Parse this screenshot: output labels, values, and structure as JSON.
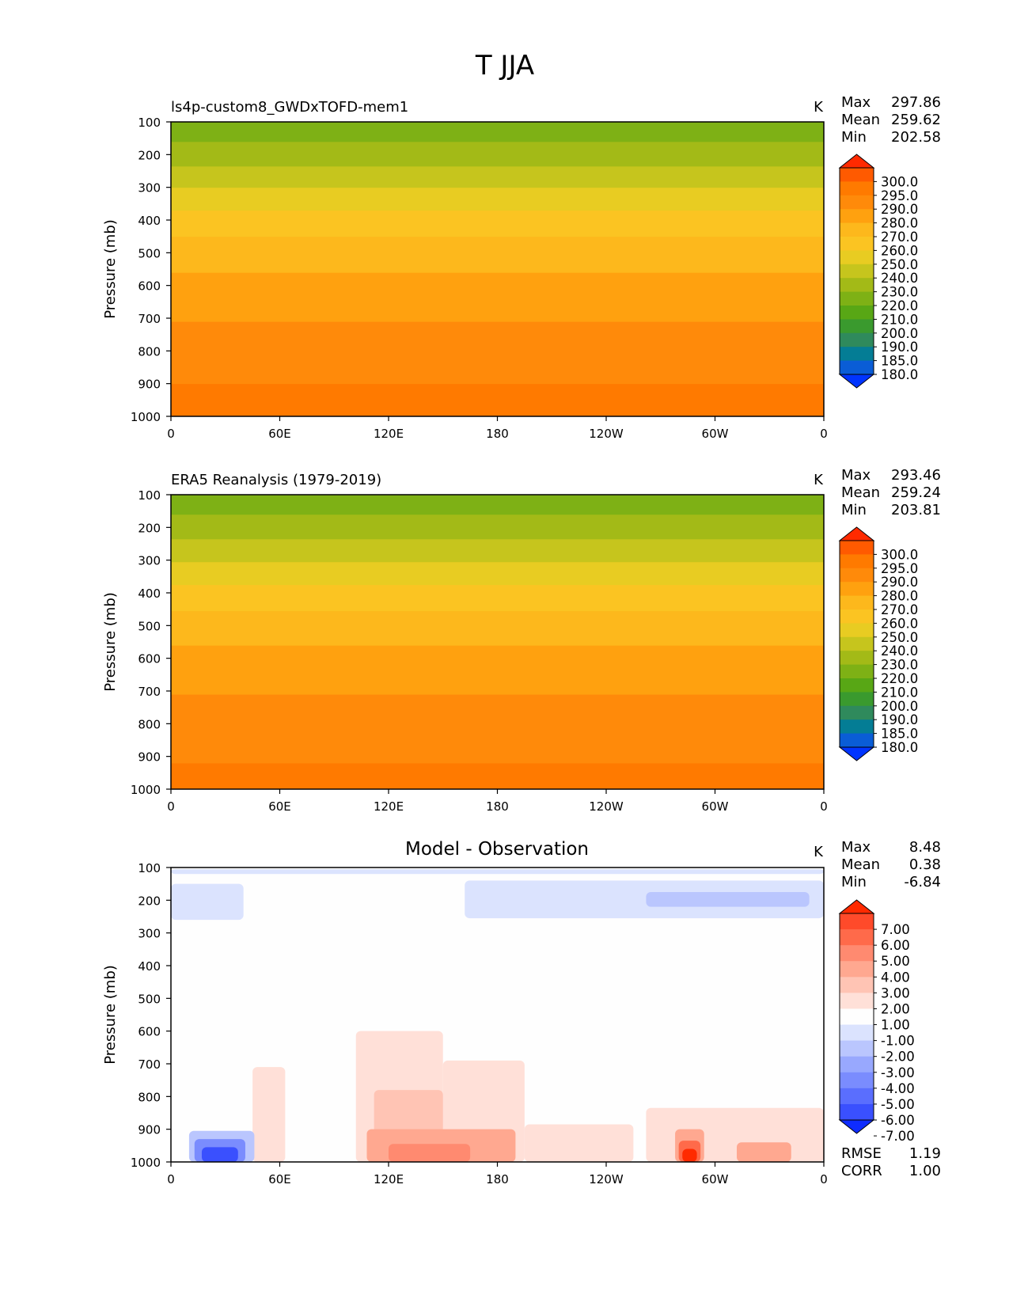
{
  "figure": {
    "title": "T JJA",
    "units": "K",
    "ylabel": "Pressure (mb)"
  },
  "x_ticks": [
    "0",
    "60E",
    "120E",
    "180",
    "120W",
    "60W",
    "0"
  ],
  "y_ticks": [
    "100",
    "200",
    "300",
    "400",
    "500",
    "600",
    "700",
    "800",
    "900",
    "1000"
  ],
  "chart_data": [
    {
      "type": "heatmap",
      "title": "ls4p-custom8_GWDxTOFD-mem1",
      "title_align": "left",
      "units": "K",
      "ylabel": "Pressure (mb)",
      "x_range": [
        0,
        360
      ],
      "y_range": [
        100,
        1000
      ],
      "stats": [
        {
          "label": "Max",
          "value": "297.86"
        },
        {
          "label": "Mean",
          "value": "259.62"
        },
        {
          "label": "Min",
          "value": "202.58"
        }
      ],
      "colorbar": {
        "labels": [
          "300.0",
          "295.0",
          "290.0",
          "280.0",
          "270.0",
          "260.0",
          "250.0",
          "240.0",
          "230.0",
          "220.0",
          "210.0",
          "200.0",
          "190.0",
          "185.0",
          "180.0"
        ],
        "colors": [
          "#ff2a00",
          "#ff5a00",
          "#ff7a00",
          "#ff8a0a",
          "#ffa10f",
          "#fdb81c",
          "#fbc422",
          "#e8cc22",
          "#c6c51d",
          "#a3ba17",
          "#7eb115",
          "#58a715",
          "#3a9a2e",
          "#2f8a5c",
          "#047d95",
          "#0a5dd6",
          "#0034ff"
        ],
        "over_color": "#ff2a00",
        "under_color": "#0034ff"
      },
      "bands": [
        {
          "level": 100,
          "value": 205
        },
        {
          "level": 160,
          "value": 215
        },
        {
          "level": 235,
          "value": 225
        },
        {
          "level": 300,
          "value": 235
        },
        {
          "level": 370,
          "value": 245
        },
        {
          "level": 450,
          "value": 255
        },
        {
          "level": 560,
          "value": 265
        },
        {
          "level": 710,
          "value": 275
        },
        {
          "level": 900,
          "value": 285
        },
        {
          "level": 990,
          "value": 292
        }
      ]
    },
    {
      "type": "heatmap",
      "title": "ERA5 Reanalysis (1979-2019)",
      "title_align": "left",
      "units": "K",
      "ylabel": "Pressure (mb)",
      "x_range": [
        0,
        360
      ],
      "y_range": [
        100,
        1000
      ],
      "stats": [
        {
          "label": "Max",
          "value": "293.46"
        },
        {
          "label": "Mean",
          "value": "259.24"
        },
        {
          "label": "Min",
          "value": "203.81"
        }
      ],
      "colorbar": {
        "labels": [
          "300.0",
          "295.0",
          "290.0",
          "280.0",
          "270.0",
          "260.0",
          "250.0",
          "240.0",
          "230.0",
          "220.0",
          "210.0",
          "200.0",
          "190.0",
          "185.0",
          "180.0"
        ],
        "colors": [
          "#ff2a00",
          "#ff5a00",
          "#ff7a00",
          "#ff8a0a",
          "#ffa10f",
          "#fdb81c",
          "#fbc422",
          "#e8cc22",
          "#c6c51d",
          "#a3ba17",
          "#7eb115",
          "#58a715",
          "#3a9a2e",
          "#2f8a5c",
          "#047d95",
          "#0a5dd6",
          "#0034ff"
        ],
        "over_color": "#ff2a00",
        "under_color": "#0034ff"
      },
      "bands": [
        {
          "level": 100,
          "value": 205
        },
        {
          "level": 160,
          "value": 215
        },
        {
          "level": 235,
          "value": 225
        },
        {
          "level": 305,
          "value": 235
        },
        {
          "level": 375,
          "value": 245
        },
        {
          "level": 455,
          "value": 255
        },
        {
          "level": 560,
          "value": 265
        },
        {
          "level": 710,
          "value": 275
        },
        {
          "level": 920,
          "value": 285
        },
        {
          "level": 990,
          "value": 291
        }
      ]
    },
    {
      "type": "heatmap",
      "title": "Model - Observation",
      "title_align": "center",
      "units": "K",
      "ylabel": "Pressure (mb)",
      "x_range": [
        0,
        360
      ],
      "y_range": [
        100,
        1000
      ],
      "stats": [
        {
          "label": "Max",
          "value": "8.48"
        },
        {
          "label": "Mean",
          "value": "0.38"
        },
        {
          "label": "Min",
          "value": "-6.84"
        }
      ],
      "extra_stats": [
        {
          "label": "RMSE",
          "value": "1.19"
        },
        {
          "label": "CORR",
          "value": "1.00"
        }
      ],
      "colorbar": {
        "labels": [
          "7.00",
          "6.00",
          "5.00",
          "4.00",
          "3.00",
          "2.00",
          "1.00",
          "-1.00",
          "-2.00",
          "-3.00",
          "-4.00",
          "-5.00",
          "-6.00",
          "-7.00"
        ],
        "colors": [
          "#ff2a00",
          "#ff4a2a",
          "#ff6a4a",
          "#ff8a70",
          "#ffa890",
          "#ffc4b4",
          "#ffe0d8",
          "#fefefe",
          "#dbe3fe",
          "#bac6fe",
          "#98a8fe",
          "#7a8cfe",
          "#5a6efe",
          "#3a50fe",
          "#0f2cff"
        ],
        "over_color": "#ff2a00",
        "under_color": "#0f2cff"
      },
      "patches": [
        {
          "x": 0,
          "y": 105,
          "w": 360,
          "h": 15,
          "value": -1.5
        },
        {
          "x": 0,
          "y": 150,
          "w": 40,
          "h": 110,
          "value": -1.5
        },
        {
          "x": 162,
          "y": 140,
          "w": 198,
          "h": 115,
          "value": -1.5
        },
        {
          "x": 262,
          "y": 175,
          "w": 90,
          "h": 45,
          "value": -2.5
        },
        {
          "x": 45,
          "y": 710,
          "w": 18,
          "h": 290,
          "value": 1.5
        },
        {
          "x": 102,
          "y": 600,
          "w": 48,
          "h": 400,
          "value": 1.5
        },
        {
          "x": 150,
          "y": 690,
          "w": 45,
          "h": 310,
          "value": 1.5
        },
        {
          "x": 195,
          "y": 885,
          "w": 60,
          "h": 115,
          "value": 1.5
        },
        {
          "x": 262,
          "y": 835,
          "w": 98,
          "h": 165,
          "value": 1.5
        },
        {
          "x": 112,
          "y": 780,
          "w": 38,
          "h": 220,
          "value": 2.5
        },
        {
          "x": 108,
          "y": 900,
          "w": 82,
          "h": 100,
          "value": 3.5
        },
        {
          "x": 120,
          "y": 945,
          "w": 45,
          "h": 55,
          "value": 4.5
        },
        {
          "x": 278,
          "y": 900,
          "w": 16,
          "h": 100,
          "value": 3.5
        },
        {
          "x": 280,
          "y": 935,
          "w": 12,
          "h": 65,
          "value": 5.5
        },
        {
          "x": 282,
          "y": 960,
          "w": 8,
          "h": 40,
          "value": 7.5
        },
        {
          "x": 312,
          "y": 940,
          "w": 30,
          "h": 60,
          "value": 3.5
        },
        {
          "x": 10,
          "y": 905,
          "w": 36,
          "h": 95,
          "value": -2.5
        },
        {
          "x": 13,
          "y": 930,
          "w": 28,
          "h": 70,
          "value": -4.5
        },
        {
          "x": 17,
          "y": 955,
          "w": 20,
          "h": 45,
          "value": -6.5
        }
      ]
    }
  ]
}
